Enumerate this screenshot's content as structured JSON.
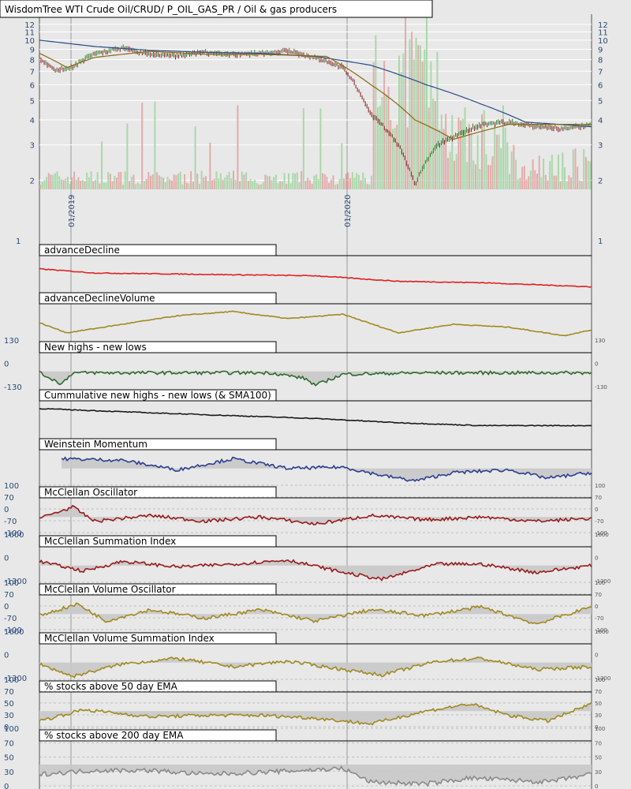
{
  "chart_data": {
    "type": "line",
    "title": "WisdomTree WTI Crude Oil/CRUD/ P_OIL_GAS_PR / Oil & gas producers",
    "x_ticks": [
      "01/2019",
      "01/2020"
    ],
    "price_panel": {
      "scale": "log",
      "y_ticks": [
        12,
        11,
        10,
        9,
        8,
        7,
        6,
        5,
        4,
        3,
        2
      ],
      "lower_tick": 1,
      "series_keys": [
        [
          0,
          8.2
        ],
        [
          0.03,
          7.0
        ],
        [
          0.06,
          7.4
        ],
        [
          0.1,
          8.6
        ],
        [
          0.15,
          9.1
        ],
        [
          0.2,
          8.5
        ],
        [
          0.25,
          8.4
        ],
        [
          0.3,
          8.7
        ],
        [
          0.35,
          8.5
        ],
        [
          0.4,
          8.6
        ],
        [
          0.45,
          8.8
        ],
        [
          0.5,
          8.2
        ],
        [
          0.55,
          7.3
        ],
        [
          0.6,
          4.3
        ],
        [
          0.65,
          3.0
        ],
        [
          0.68,
          1.9
        ],
        [
          0.72,
          3.0
        ],
        [
          0.8,
          3.8
        ],
        [
          0.85,
          3.9
        ],
        [
          0.9,
          3.7
        ],
        [
          0.95,
          3.6
        ],
        [
          1.0,
          3.8
        ]
      ],
      "sma_slow_keys": [
        [
          0,
          10
        ],
        [
          0.1,
          9.3
        ],
        [
          0.2,
          8.9
        ],
        [
          0.3,
          8.7
        ],
        [
          0.4,
          8.6
        ],
        [
          0.5,
          8.3
        ],
        [
          0.6,
          7.5
        ],
        [
          0.7,
          6.0
        ],
        [
          0.8,
          4.8
        ],
        [
          0.88,
          3.9
        ],
        [
          1.0,
          3.7
        ]
      ],
      "sma_fast_keys": [
        [
          0,
          8.6
        ],
        [
          0.05,
          7.3
        ],
        [
          0.1,
          8.2
        ],
        [
          0.2,
          8.8
        ],
        [
          0.3,
          8.5
        ],
        [
          0.4,
          8.5
        ],
        [
          0.52,
          8.3
        ],
        [
          0.6,
          6.0
        ],
        [
          0.68,
          4.0
        ],
        [
          0.75,
          3.2
        ],
        [
          0.85,
          3.8
        ],
        [
          1.0,
          3.8
        ]
      ]
    },
    "panels": [
      {
        "title": "advanceDecline",
        "y_ticks": [],
        "color": "#e02020",
        "fill": false,
        "keys": [
          [
            0,
            0.75
          ],
          [
            0.1,
            0.6
          ],
          [
            0.3,
            0.55
          ],
          [
            0.5,
            0.5
          ],
          [
            0.65,
            0.3
          ],
          [
            0.8,
            0.25
          ],
          [
            1.0,
            0.1
          ]
        ]
      },
      {
        "title": "advanceDeclineVolume",
        "y_ticks": [],
        "color": "#a08a20",
        "fill": false,
        "keys": [
          [
            0,
            0.55
          ],
          [
            0.05,
            0.2
          ],
          [
            0.15,
            0.5
          ],
          [
            0.25,
            0.8
          ],
          [
            0.35,
            0.95
          ],
          [
            0.45,
            0.7
          ],
          [
            0.55,
            0.85
          ],
          [
            0.65,
            0.2
          ],
          [
            0.75,
            0.5
          ],
          [
            0.85,
            0.4
          ],
          [
            0.95,
            0.1
          ],
          [
            1.0,
            0.3
          ]
        ]
      },
      {
        "title": "New highs - new lows",
        "y_ticks": [
          "130",
          "0",
          "-130"
        ],
        "color": "#2f6a2f",
        "fill": true,
        "keys": [
          [
            0,
            0.5
          ],
          [
            0.04,
            0.1
          ],
          [
            0.06,
            0.5
          ],
          [
            0.3,
            0.5
          ],
          [
            0.42,
            0.5
          ],
          [
            0.48,
            0.3
          ],
          [
            0.5,
            0.05
          ],
          [
            0.55,
            0.45
          ],
          [
            0.7,
            0.5
          ],
          [
            1.0,
            0.5
          ]
        ]
      },
      {
        "title": "Cummulative new highs - new lows (& SMA100)",
        "y_ticks": [],
        "color": "#1a1a1a",
        "fill": false,
        "keys": [
          [
            0,
            0.95
          ],
          [
            0.2,
            0.8
          ],
          [
            0.5,
            0.6
          ],
          [
            0.65,
            0.45
          ],
          [
            0.8,
            0.35
          ],
          [
            1.0,
            0.35
          ]
        ]
      },
      {
        "title": "Weinstein Momentum",
        "y_ticks": [],
        "color": "#2a3f8f",
        "fill": true,
        "keys": [
          [
            0.04,
            0.9
          ],
          [
            0.15,
            0.85
          ],
          [
            0.25,
            0.5
          ],
          [
            0.35,
            0.9
          ],
          [
            0.45,
            0.55
          ],
          [
            0.55,
            0.6
          ],
          [
            0.62,
            0.3
          ],
          [
            0.68,
            0.1
          ],
          [
            0.75,
            0.4
          ],
          [
            0.85,
            0.5
          ],
          [
            0.92,
            0.2
          ],
          [
            1.0,
            0.4
          ]
        ]
      },
      {
        "title": "McClellan Oscillator",
        "y_ticks": [
          "100",
          "70",
          "0",
          "-70",
          "-100"
        ],
        "color": "#9a1a1a",
        "fill": true,
        "keys": [
          [
            0,
            0.5
          ],
          [
            0.06,
            0.9
          ],
          [
            0.1,
            0.4
          ],
          [
            0.2,
            0.6
          ],
          [
            0.3,
            0.4
          ],
          [
            0.4,
            0.55
          ],
          [
            0.5,
            0.3
          ],
          [
            0.6,
            0.6
          ],
          [
            0.7,
            0.45
          ],
          [
            0.8,
            0.55
          ],
          [
            0.9,
            0.4
          ],
          [
            1.0,
            0.5
          ]
        ]
      },
      {
        "title": "McClellan Summation Index",
        "y_ticks": [
          "1600",
          "0",
          "-1300"
        ],
        "color": "#9a1a1a",
        "fill": true,
        "keys": [
          [
            0,
            0.7
          ],
          [
            0.08,
            0.35
          ],
          [
            0.15,
            0.7
          ],
          [
            0.25,
            0.5
          ],
          [
            0.35,
            0.6
          ],
          [
            0.45,
            0.75
          ],
          [
            0.55,
            0.3
          ],
          [
            0.62,
            0.05
          ],
          [
            0.72,
            0.6
          ],
          [
            0.8,
            0.6
          ],
          [
            0.9,
            0.3
          ],
          [
            1.0,
            0.55
          ]
        ]
      },
      {
        "title": "McClellan Volume Oscillator",
        "y_ticks": [
          "100",
          "70",
          "0",
          "-70",
          "-100"
        ],
        "color": "#a08a20",
        "fill": true,
        "keys": [
          [
            0,
            0.5
          ],
          [
            0.07,
            0.9
          ],
          [
            0.12,
            0.3
          ],
          [
            0.2,
            0.7
          ],
          [
            0.3,
            0.4
          ],
          [
            0.4,
            0.7
          ],
          [
            0.5,
            0.3
          ],
          [
            0.6,
            0.7
          ],
          [
            0.7,
            0.5
          ],
          [
            0.8,
            0.8
          ],
          [
            0.9,
            0.2
          ],
          [
            1.0,
            0.8
          ]
        ]
      },
      {
        "title": "McClellan Volume Summation Index",
        "y_ticks": [
          "1600",
          "0",
          "-1300"
        ],
        "color": "#a08a20",
        "fill": true,
        "keys": [
          [
            0,
            0.5
          ],
          [
            0.06,
            0.05
          ],
          [
            0.15,
            0.5
          ],
          [
            0.25,
            0.7
          ],
          [
            0.35,
            0.4
          ],
          [
            0.45,
            0.6
          ],
          [
            0.55,
            0.3
          ],
          [
            0.62,
            0.1
          ],
          [
            0.72,
            0.6
          ],
          [
            0.8,
            0.7
          ],
          [
            0.9,
            0.3
          ],
          [
            1.0,
            0.4
          ]
        ]
      },
      {
        "title": "% stocks above 50 day EMA",
        "y_ticks": [
          "100",
          "70",
          "50",
          "30",
          "0"
        ],
        "color": "#a08a20",
        "fill": true,
        "keys": [
          [
            0,
            0.2
          ],
          [
            0.08,
            0.6
          ],
          [
            0.2,
            0.35
          ],
          [
            0.3,
            0.4
          ],
          [
            0.4,
            0.4
          ],
          [
            0.5,
            0.3
          ],
          [
            0.6,
            0.1
          ],
          [
            0.7,
            0.55
          ],
          [
            0.78,
            0.8
          ],
          [
            0.85,
            0.4
          ],
          [
            0.92,
            0.2
          ],
          [
            1.0,
            0.8
          ]
        ]
      },
      {
        "title": "% stocks above 200 day EMA",
        "y_ticks": [
          "100",
          "70",
          "50",
          "30",
          "0"
        ],
        "color": "#8a8a8a",
        "fill": true,
        "keys": [
          [
            0,
            0.3
          ],
          [
            0.1,
            0.4
          ],
          [
            0.2,
            0.4
          ],
          [
            0.3,
            0.3
          ],
          [
            0.4,
            0.35
          ],
          [
            0.55,
            0.45
          ],
          [
            0.6,
            0.1
          ],
          [
            0.7,
            0.05
          ],
          [
            0.78,
            0.2
          ],
          [
            0.85,
            0.15
          ],
          [
            0.92,
            0.1
          ],
          [
            1.0,
            0.3
          ]
        ]
      }
    ]
  }
}
